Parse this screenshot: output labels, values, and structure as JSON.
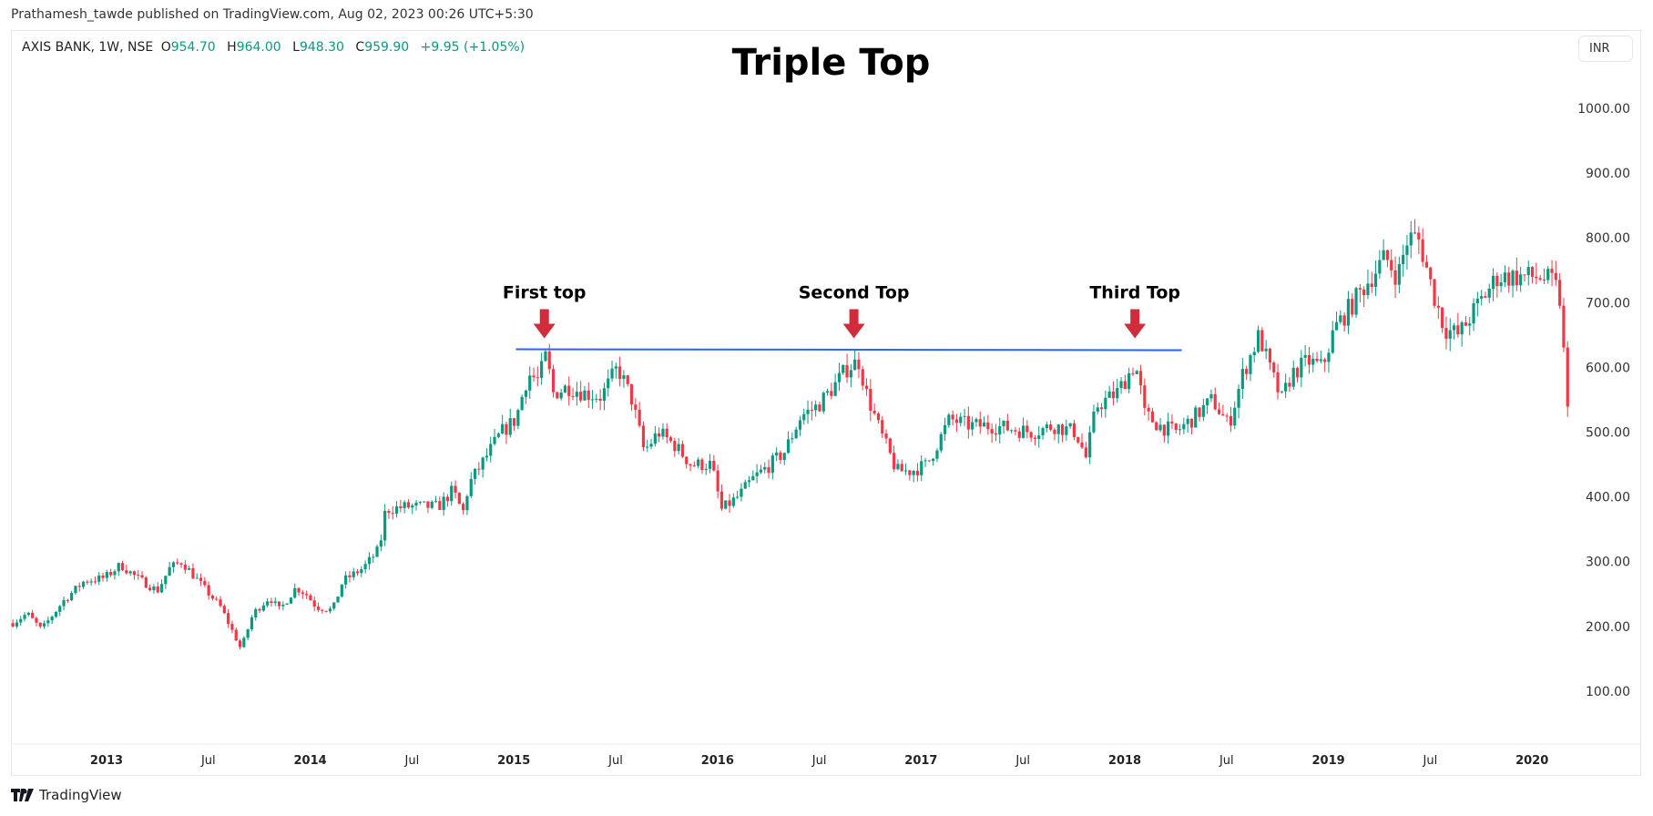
{
  "published": "Prathamesh_tawde published on TradingView.com, Aug 02, 2023 00:26 UTC+5:30",
  "legend": {
    "symbol": "AXIS BANK, 1W, NSE",
    "o_label": "O",
    "open": "954.70",
    "h_label": "H",
    "high": "964.00",
    "l_label": "L",
    "low": "948.30",
    "c_label": "C",
    "close": "959.90",
    "change": "+9.95 (+1.05%)"
  },
  "currency": "INR",
  "footer": {
    "brand": "TradingView",
    "logo_icon": "tradingview-logo-icon"
  },
  "colors": {
    "up": "#089981",
    "down": "#f23645",
    "line": "#2962ff",
    "arrow": "#d12c3c"
  },
  "chart_data": {
    "type": "candlestick",
    "interval": "weekly",
    "title": "Triple Top",
    "ylim": [
      0,
      1090
    ],
    "xlim": [
      2012.52,
      2020.32
    ],
    "y_ticks": [
      "1000.00",
      "900.00",
      "800.00",
      "700.00",
      "600.00",
      "500.00",
      "400.00",
      "300.00",
      "200.00",
      "100.00"
    ],
    "x_ticks": [
      {
        "t": 2013,
        "label": "2013",
        "bold": true
      },
      {
        "t": 2013.5,
        "label": "Jul"
      },
      {
        "t": 2014,
        "label": "2014",
        "bold": true
      },
      {
        "t": 2014.5,
        "label": "Jul"
      },
      {
        "t": 2015,
        "label": "2015",
        "bold": true
      },
      {
        "t": 2015.5,
        "label": "Jul"
      },
      {
        "t": 2016,
        "label": "2016",
        "bold": true
      },
      {
        "t": 2016.5,
        "label": "Jul"
      },
      {
        "t": 2017,
        "label": "2017",
        "bold": true
      },
      {
        "t": 2017.5,
        "label": "Jul"
      },
      {
        "t": 2018,
        "label": "2018",
        "bold": true
      },
      {
        "t": 2018.5,
        "label": "Jul"
      },
      {
        "t": 2019,
        "label": "2019",
        "bold": true
      },
      {
        "t": 2019.5,
        "label": "Jul"
      },
      {
        "t": 2020,
        "label": "2020",
        "bold": true
      }
    ],
    "close_path": [
      [
        2012.54,
        205
      ],
      [
        2012.61,
        220
      ],
      [
        2012.68,
        195
      ],
      [
        2012.79,
        240
      ],
      [
        2012.89,
        270
      ],
      [
        2012.99,
        275
      ],
      [
        2013.07,
        295
      ],
      [
        2013.15,
        275
      ],
      [
        2013.25,
        255
      ],
      [
        2013.31,
        290
      ],
      [
        2013.37,
        300
      ],
      [
        2013.41,
        285
      ],
      [
        2013.49,
        255
      ],
      [
        2013.56,
        230
      ],
      [
        2013.63,
        185
      ],
      [
        2013.66,
        165
      ],
      [
        2013.72,
        220
      ],
      [
        2013.8,
        245
      ],
      [
        2013.85,
        225
      ],
      [
        2013.93,
        260
      ],
      [
        2013.98,
        250
      ],
      [
        2014.03,
        230
      ],
      [
        2014.11,
        225
      ],
      [
        2014.16,
        270
      ],
      [
        2014.26,
        290
      ],
      [
        2014.34,
        320
      ],
      [
        2014.37,
        380
      ],
      [
        2014.47,
        385
      ],
      [
        2014.55,
        385
      ],
      [
        2014.63,
        385
      ],
      [
        2014.7,
        410
      ],
      [
        2014.75,
        375
      ],
      [
        2014.78,
        420
      ],
      [
        2014.86,
        460
      ],
      [
        2014.94,
        500
      ],
      [
        2015.01,
        520
      ],
      [
        2015.07,
        590
      ],
      [
        2015.12,
        580
      ],
      [
        2015.16,
        620
      ],
      [
        2015.19,
        560
      ],
      [
        2015.27,
        570
      ],
      [
        2015.35,
        560
      ],
      [
        2015.43,
        555
      ],
      [
        2015.51,
        600
      ],
      [
        2015.58,
        550
      ],
      [
        2015.64,
        470
      ],
      [
        2015.71,
        500
      ],
      [
        2015.79,
        480
      ],
      [
        2015.87,
        450
      ],
      [
        2015.97,
        450
      ],
      [
        2016.02,
        380
      ],
      [
        2016.1,
        400
      ],
      [
        2016.18,
        430
      ],
      [
        2016.26,
        450
      ],
      [
        2016.33,
        470
      ],
      [
        2016.41,
        525
      ],
      [
        2016.49,
        540
      ],
      [
        2016.57,
        570
      ],
      [
        2016.64,
        600
      ],
      [
        2016.7,
        610
      ],
      [
        2016.72,
        570
      ],
      [
        2016.8,
        500
      ],
      [
        2016.88,
        440
      ],
      [
        2016.95,
        440
      ],
      [
        2017.03,
        450
      ],
      [
        2017.14,
        520
      ],
      [
        2017.24,
        510
      ],
      [
        2017.34,
        510
      ],
      [
        2017.45,
        505
      ],
      [
        2017.55,
        500
      ],
      [
        2017.65,
        510
      ],
      [
        2017.76,
        500
      ],
      [
        2017.81,
        460
      ],
      [
        2017.86,
        540
      ],
      [
        2017.96,
        560
      ],
      [
        2018.04,
        600
      ],
      [
        2018.07,
        590
      ],
      [
        2018.09,
        530
      ],
      [
        2018.17,
        510
      ],
      [
        2018.25,
        500
      ],
      [
        2018.33,
        520
      ],
      [
        2018.43,
        550
      ],
      [
        2018.51,
        510
      ],
      [
        2018.58,
        590
      ],
      [
        2018.66,
        650
      ],
      [
        2018.71,
        600
      ],
      [
        2018.77,
        550
      ],
      [
        2018.82,
        590
      ],
      [
        2018.9,
        610
      ],
      [
        2018.97,
        600
      ],
      [
        2019.03,
        660
      ],
      [
        2019.1,
        690
      ],
      [
        2019.21,
        740
      ],
      [
        2019.28,
        770
      ],
      [
        2019.34,
        740
      ],
      [
        2019.39,
        800
      ],
      [
        2019.44,
        800
      ],
      [
        2019.46,
        780
      ],
      [
        2019.51,
        720
      ],
      [
        2019.57,
        660
      ],
      [
        2019.64,
        650
      ],
      [
        2019.72,
        690
      ],
      [
        2019.83,
        740
      ],
      [
        2019.93,
        740
      ],
      [
        2020.04,
        740
      ],
      [
        2020.11,
        730
      ],
      [
        2020.14,
        700
      ],
      [
        2020.16,
        600
      ],
      [
        2020.19,
        460
      ]
    ],
    "resistance": {
      "price": 628,
      "from": 2015.01,
      "to": 2018.28
    },
    "annotations": [
      {
        "t": 2015.15,
        "label": "First top"
      },
      {
        "t": 2016.67,
        "label": "Second Top"
      },
      {
        "t": 2018.05,
        "label": "Third Top"
      }
    ]
  }
}
